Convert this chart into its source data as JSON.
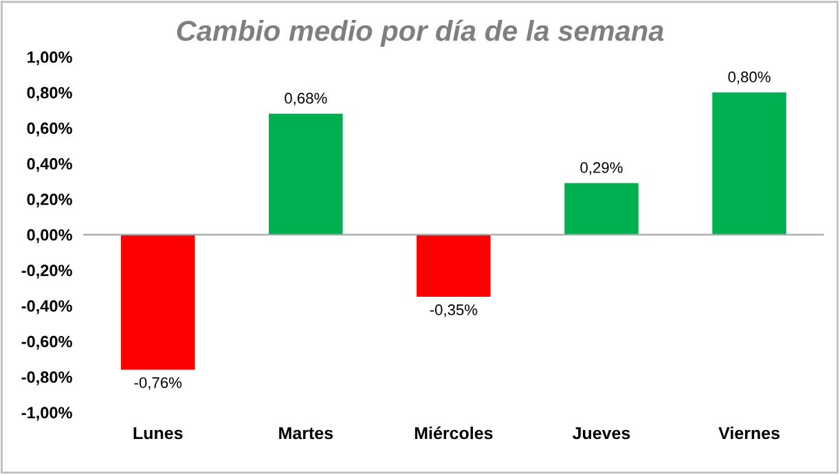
{
  "chart_data": {
    "type": "bar",
    "title": "Cambio medio por día de la semana",
    "categories": [
      "Lunes",
      "Martes",
      "Miércoles",
      "Jueves",
      "Viernes"
    ],
    "values": [
      -0.76,
      0.68,
      -0.35,
      0.29,
      0.8
    ],
    "colors": [
      "#ff0000",
      "#00b050",
      "#ff0000",
      "#00b050",
      "#00b050"
    ],
    "value_labels": [
      "-0,76%",
      "0,68%",
      "-0,35%",
      "0,29%",
      "0,80%"
    ],
    "ylim": [
      -1.0,
      1.0
    ],
    "yticks": [
      {
        "value": -1.0,
        "label": "-1,00%"
      },
      {
        "value": -0.8,
        "label": "-0,80%"
      },
      {
        "value": -0.6,
        "label": "-0,60%"
      },
      {
        "value": -0.4,
        "label": "-0,40%"
      },
      {
        "value": -0.2,
        "label": "-0,20%"
      },
      {
        "value": 0.0,
        "label": "0,00%"
      },
      {
        "value": 0.2,
        "label": "0,20%"
      },
      {
        "value": 0.4,
        "label": "0,40%"
      },
      {
        "value": 0.6,
        "label": "0,60%"
      },
      {
        "value": 0.8,
        "label": "0,80%"
      },
      {
        "value": 1.0,
        "label": "1,00%"
      }
    ],
    "legend": false
  }
}
